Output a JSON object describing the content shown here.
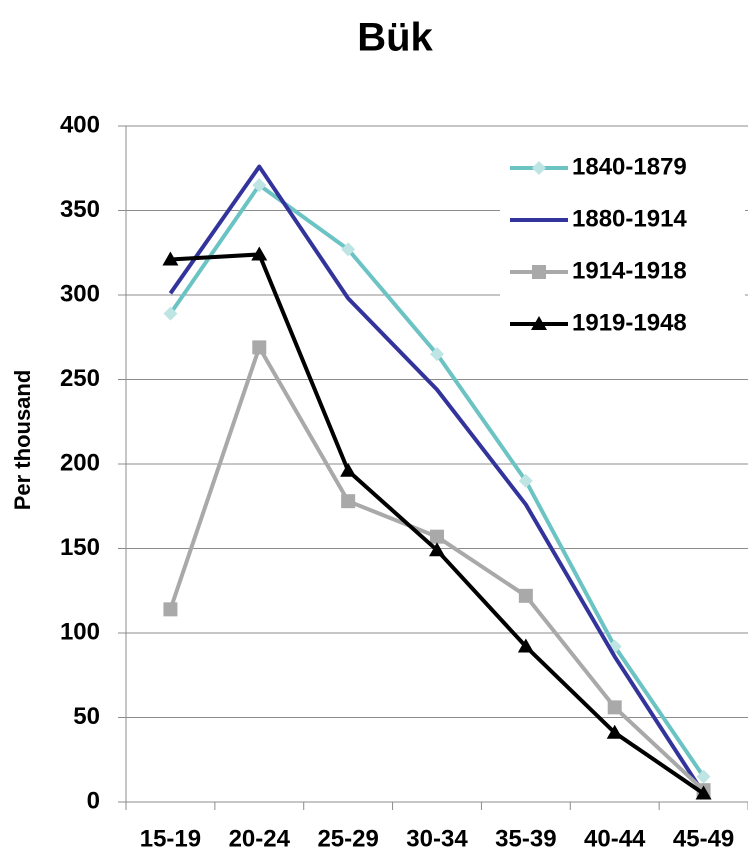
{
  "chart_data": {
    "type": "line",
    "title": "Bük",
    "y_label": "Per thousand",
    "categories": [
      "15-19",
      "20-24",
      "25-29",
      "30-34",
      "35-39",
      "40-44",
      "45-49"
    ],
    "series": [
      {
        "name": "1840-1879",
        "color": "#6cc3c3",
        "marker": "diamond",
        "marker_color": "#bfe4e4",
        "values": [
          289,
          365,
          327,
          265,
          190,
          92,
          15
        ]
      },
      {
        "name": "1880-1914",
        "color": "#33339c",
        "marker": "none",
        "values": [
          301,
          376,
          298,
          244,
          176,
          86,
          5
        ]
      },
      {
        "name": "1914-1918",
        "color": "#a9a9a9",
        "marker": "square",
        "marker_color": "#a9a9a9",
        "values": [
          114,
          269,
          178,
          157,
          122,
          56,
          7
        ]
      },
      {
        "name": "1919-1948",
        "color": "#000000",
        "marker": "triangle",
        "marker_color": "#000000",
        "values": [
          321,
          324,
          196,
          149,
          92,
          41,
          5
        ]
      }
    ],
    "ylim": [
      0,
      400
    ],
    "yticks": [
      0,
      50,
      100,
      150,
      200,
      250,
      300,
      350,
      400
    ],
    "grid": true,
    "legend": "upper right"
  }
}
